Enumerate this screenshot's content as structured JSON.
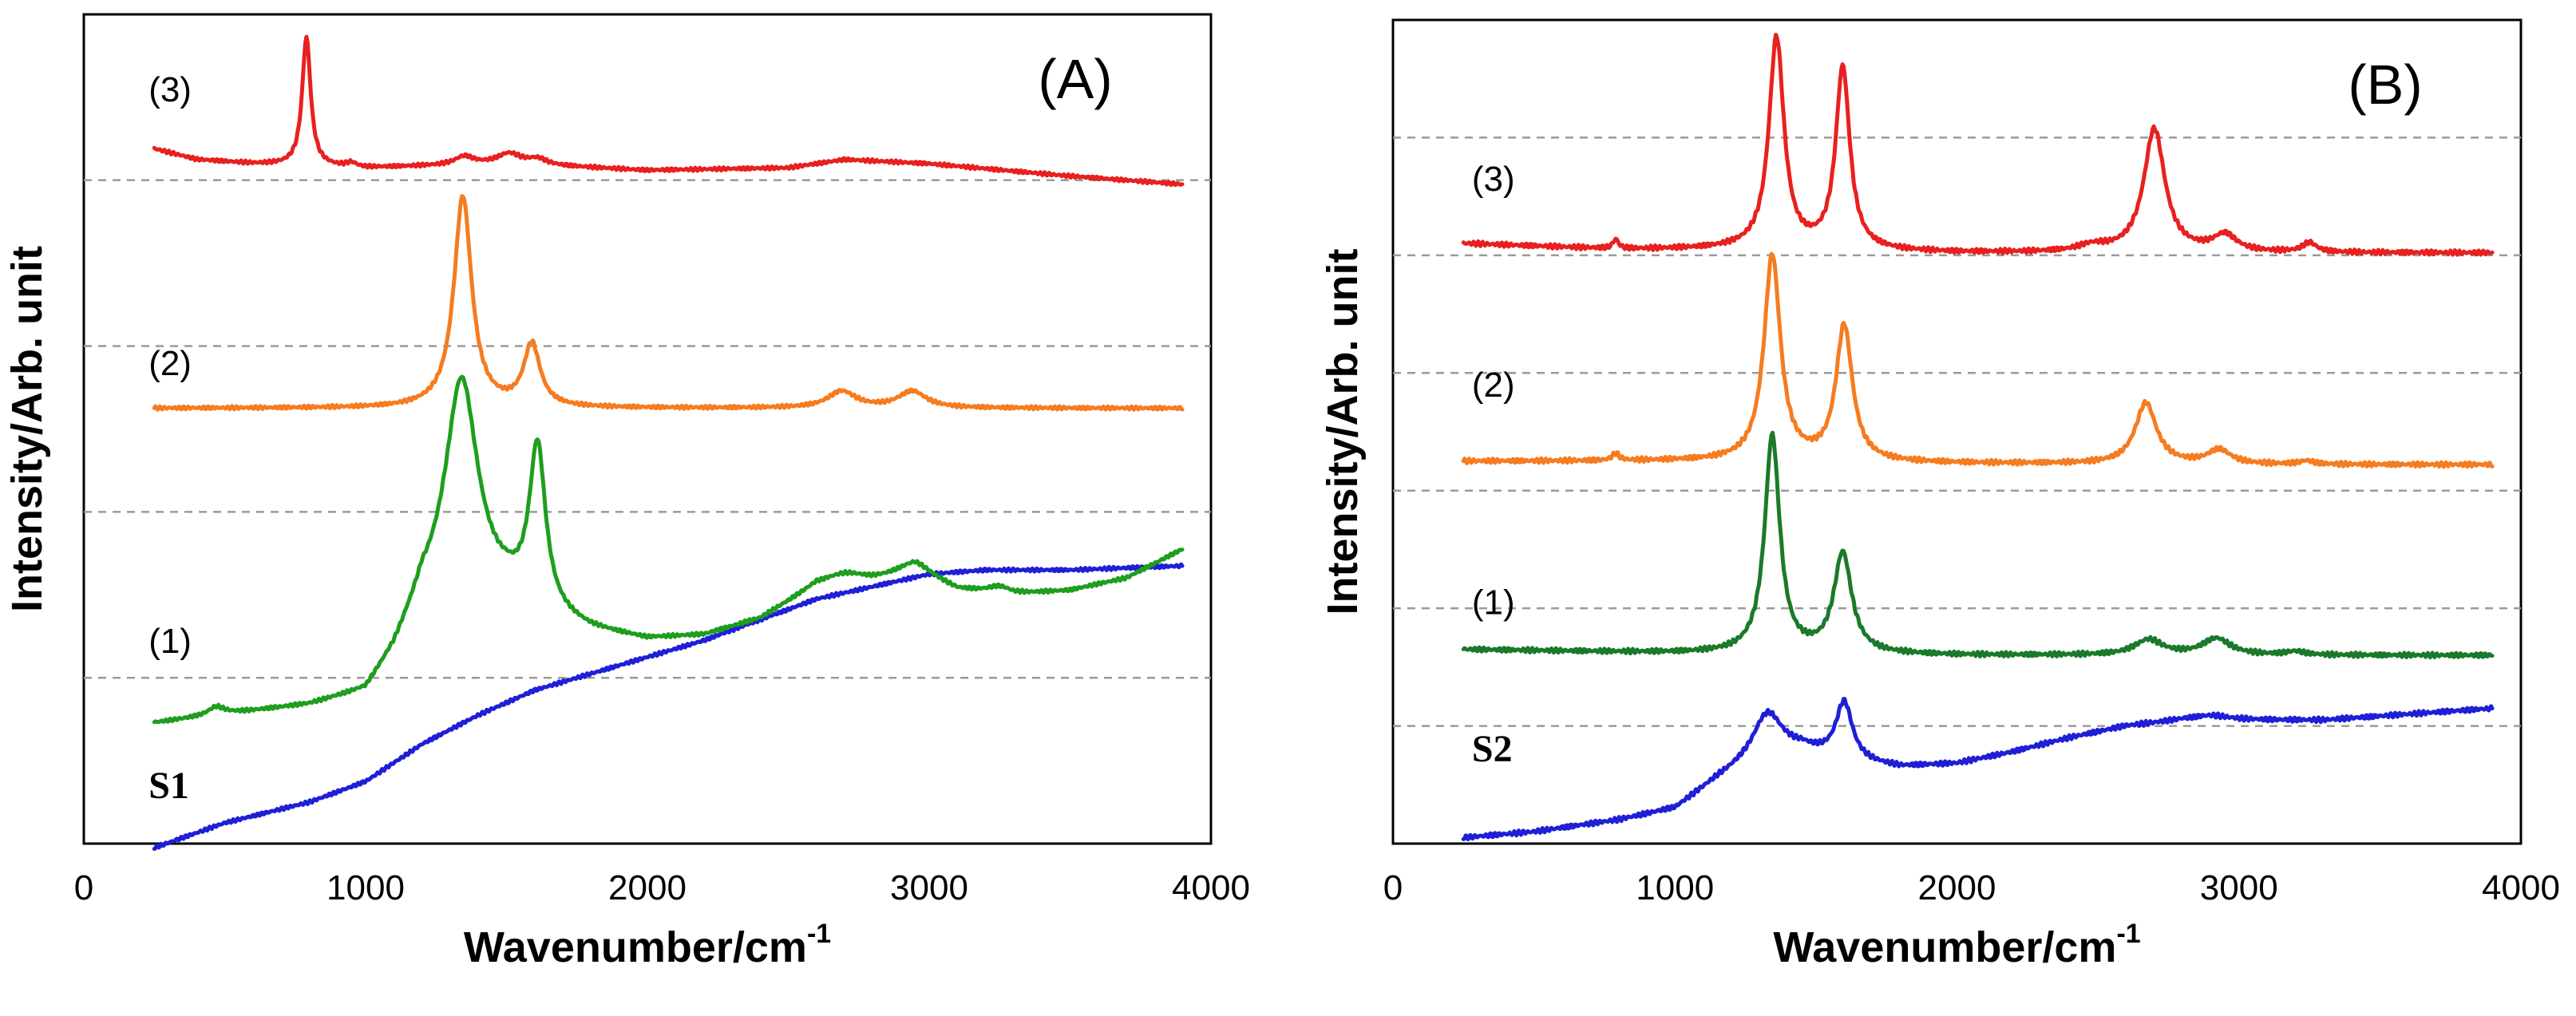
{
  "chart_data": [
    {
      "type": "line",
      "panel_label": "(A)",
      "xlabel": "Wavenumber/cm",
      "xlabel_sup": "-1",
      "ylabel": "Intensity/Arb. unit",
      "xlim": [
        0,
        4000
      ],
      "ylim": [
        0,
        10
      ],
      "x_ticks": [
        0,
        1000,
        2000,
        3000,
        4000
      ],
      "x_tick_labels": [
        "0",
        "1000",
        "2000",
        "3000",
        "4000"
      ],
      "y_ticks_shown": false,
      "dashed_baselines": [
        2,
        4,
        6,
        8
      ],
      "series": [
        {
          "name": "S1",
          "label": "S1",
          "label_style": "bold-serif",
          "color": "#1f1fd6",
          "label_at": [
            230,
            0.55
          ],
          "baseline": [
            [
              250,
              -0.05
            ],
            [
              500,
              0.25
            ],
            [
              800,
              0.5
            ],
            [
              1000,
              0.75
            ],
            [
              1200,
              1.2
            ],
            [
              1400,
              1.55
            ],
            [
              1600,
              1.85
            ],
            [
              1800,
              2.05
            ],
            [
              2000,
              2.25
            ],
            [
              2200,
              2.45
            ],
            [
              2400,
              2.7
            ],
            [
              2600,
              2.95
            ],
            [
              2800,
              3.1
            ],
            [
              3000,
              3.25
            ],
            [
              3200,
              3.3
            ],
            [
              3500,
              3.3
            ],
            [
              3900,
              3.35
            ]
          ],
          "peaks": []
        },
        {
          "name": "(1)",
          "label": "(1)",
          "label_style": "normal",
          "color": "#1e9e1e",
          "label_at": [
            230,
            2.3
          ],
          "baseline": [
            [
              250,
              1.45
            ],
            [
              500,
              1.55
            ],
            [
              800,
              1.65
            ],
            [
              1000,
              1.8
            ],
            [
              1100,
              2.25
            ],
            [
              1200,
              2.9
            ],
            [
              1350,
              3.0
            ],
            [
              1500,
              2.95
            ],
            [
              1650,
              2.7
            ],
            [
              1800,
              2.55
            ],
            [
              2000,
              2.45
            ],
            [
              2200,
              2.5
            ],
            [
              2400,
              2.7
            ],
            [
              2600,
              3.1
            ],
            [
              2800,
              3.15
            ],
            [
              2950,
              3.25
            ],
            [
              3100,
              3.05
            ],
            [
              3300,
              3.0
            ],
            [
              3500,
              3.05
            ],
            [
              3700,
              3.2
            ],
            [
              3900,
              3.55
            ]
          ],
          "peaks": [
            [
              470,
              0.1,
              35
            ],
            [
              1340,
              2.6,
              70
            ],
            [
              1610,
              1.95,
              35
            ],
            [
              2700,
              0.12,
              90
            ],
            [
              2950,
              0.13,
              80
            ],
            [
              3250,
              0.08,
              50
            ]
          ]
        },
        {
          "name": "(2)",
          "label": "(2)",
          "label_style": "normal",
          "color": "#f57c20",
          "label_at": [
            230,
            5.65
          ],
          "baseline": [
            [
              250,
              5.25
            ],
            [
              1000,
              5.25
            ],
            [
              2000,
              5.25
            ],
            [
              3000,
              5.25
            ],
            [
              3900,
              5.25
            ]
          ],
          "peaks": [
            [
              1345,
              2.55,
              38
            ],
            [
              1590,
              0.75,
              35
            ],
            [
              2690,
              0.2,
              60
            ],
            [
              2940,
              0.2,
              60
            ]
          ]
        },
        {
          "name": "(3)",
          "label": "(3)",
          "label_style": "normal",
          "color": "#e82020",
          "label_at": [
            230,
            8.95
          ],
          "baseline": [
            [
              250,
              8.38
            ],
            [
              400,
              8.25
            ],
            [
              600,
              8.2
            ],
            [
              1000,
              8.15
            ],
            [
              1500,
              8.2
            ],
            [
              2000,
              8.12
            ],
            [
              2500,
              8.15
            ],
            [
              2700,
              8.25
            ],
            [
              3000,
              8.2
            ],
            [
              3500,
              8.05
            ],
            [
              3900,
              7.95
            ]
          ],
          "peaks": [
            [
              790,
              1.55,
              18
            ],
            [
              950,
              0.05,
              20
            ],
            [
              1350,
              0.1,
              40
            ],
            [
              1510,
              0.12,
              50
            ],
            [
              1610,
              0.07,
              40
            ]
          ]
        }
      ]
    },
    {
      "type": "line",
      "panel_label": "(B)",
      "xlabel": "Wavenumber/cm",
      "xlabel_sup": "-1",
      "ylabel": "Intensity/Arb. unit",
      "xlim": [
        0,
        4000
      ],
      "ylim": [
        0,
        7
      ],
      "x_ticks": [
        0,
        1000,
        2000,
        3000,
        4000
      ],
      "x_tick_labels": [
        "0",
        "1000",
        "2000",
        "3000",
        "4000"
      ],
      "y_ticks_shown": false,
      "dashed_baselines": [
        1,
        2,
        3,
        4,
        5,
        6
      ],
      "series": [
        {
          "name": "S2",
          "label": "S2",
          "label_style": "bold-serif",
          "color": "#1f1fd6",
          "label_at": [
            280,
            0.7
          ],
          "baseline": [
            [
              250,
              0.05
            ],
            [
              500,
              0.1
            ],
            [
              800,
              0.2
            ],
            [
              1000,
              0.3
            ],
            [
              1150,
              0.55
            ],
            [
              1300,
              0.75
            ],
            [
              1450,
              0.8
            ],
            [
              1600,
              0.7
            ],
            [
              1800,
              0.65
            ],
            [
              2000,
              0.68
            ],
            [
              2200,
              0.78
            ],
            [
              2400,
              0.9
            ],
            [
              2600,
              1.0
            ],
            [
              2800,
              1.05
            ],
            [
              3000,
              1.05
            ],
            [
              3300,
              1.05
            ],
            [
              3600,
              1.1
            ],
            [
              3900,
              1.15
            ]
          ],
          "peaks": [
            [
              1330,
              0.35,
              60
            ],
            [
              1600,
              0.5,
              35
            ],
            [
              2900,
              0.04,
              80
            ]
          ]
        },
        {
          "name": "(1)",
          "label": "(1)",
          "label_style": "normal",
          "color": "#1a7a2a",
          "label_at": [
            280,
            1.95
          ],
          "baseline": [
            [
              250,
              1.65
            ],
            [
              1000,
              1.62
            ],
            [
              2000,
              1.6
            ],
            [
              3000,
              1.6
            ],
            [
              3900,
              1.6
            ]
          ],
          "peaks": [
            [
              1345,
              1.85,
              32
            ],
            [
              1595,
              0.85,
              38
            ],
            [
              2680,
              0.13,
              60
            ],
            [
              2920,
              0.14,
              60
            ],
            [
              3200,
              0.03,
              40
            ]
          ]
        },
        {
          "name": "(2)",
          "label": "(2)",
          "label_style": "normal",
          "color": "#f57c20",
          "label_at": [
            280,
            3.8
          ],
          "baseline": [
            [
              250,
              3.25
            ],
            [
              1000,
              3.25
            ],
            [
              2000,
              3.23
            ],
            [
              3000,
              3.22
            ],
            [
              3900,
              3.22
            ]
          ],
          "peaks": [
            [
              790,
              0.06,
              15
            ],
            [
              1345,
              1.75,
              35
            ],
            [
              1600,
              1.15,
              35
            ],
            [
              2670,
              0.52,
              45
            ],
            [
              2930,
              0.12,
              50
            ],
            [
              3240,
              0.03,
              30
            ]
          ]
        },
        {
          "name": "(3)",
          "label": "(3)",
          "label_style": "normal",
          "color": "#e82020",
          "label_at": [
            280,
            5.55
          ],
          "baseline": [
            [
              250,
              5.1
            ],
            [
              800,
              5.05
            ],
            [
              1200,
              5.05
            ],
            [
              2000,
              5.02
            ],
            [
              2400,
              5.02
            ],
            [
              3000,
              5.02
            ],
            [
              3900,
              5.02
            ]
          ],
          "peaks": [
            [
              790,
              0.08,
              12
            ],
            [
              1360,
              1.8,
              32
            ],
            [
              1595,
              1.55,
              30
            ],
            [
              2480,
              0.05,
              60
            ],
            [
              2700,
              1.05,
              45
            ],
            [
              2950,
              0.14,
              50
            ],
            [
              3250,
              0.08,
              30
            ]
          ]
        }
      ]
    }
  ]
}
